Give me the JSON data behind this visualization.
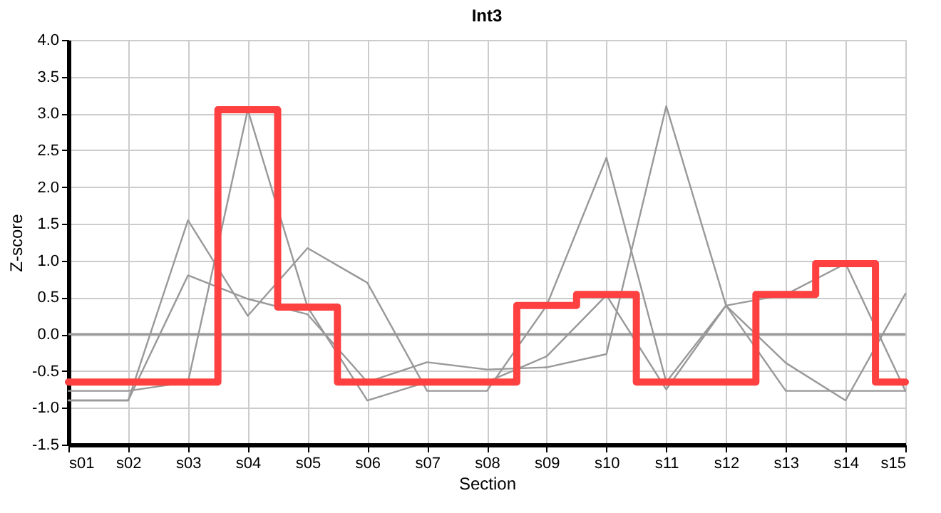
{
  "chart_data": {
    "type": "line",
    "title": "Int3",
    "xlabel": "Section",
    "ylabel": "Z-score",
    "categories": [
      "s01",
      "s02",
      "s03",
      "s04",
      "s05",
      "s06",
      "s07",
      "s08",
      "s09",
      "s10",
      "s11",
      "s12",
      "s13",
      "s14",
      "s15"
    ],
    "series": [
      {
        "color": "#999999",
        "values": [
          -0.77,
          -0.77,
          -0.65,
          3.05,
          0.37,
          -0.9,
          -0.65,
          -0.65,
          -0.3,
          0.53,
          -0.75,
          0.39,
          0.54,
          0.96,
          -0.77
        ]
      },
      {
        "color": "#999999",
        "values": [
          -0.9,
          -0.9,
          1.55,
          0.25,
          1.17,
          0.7,
          -0.77,
          -0.77,
          0.39,
          2.4,
          -0.65,
          0.39,
          -0.39,
          -0.9,
          0.55
        ]
      },
      {
        "color": "#999999",
        "values": [
          -0.9,
          -0.9,
          0.8,
          0.48,
          0.27,
          -0.65,
          -0.38,
          -0.48,
          -0.45,
          -0.27,
          3.1,
          0.39,
          -0.77,
          -0.77,
          -0.77
        ]
      },
      {
        "type": "step",
        "color": "#ff4040",
        "values": [
          -0.65,
          -0.65,
          -0.65,
          3.05,
          0.37,
          -0.65,
          -0.65,
          -0.65,
          0.39,
          0.54,
          -0.65,
          -0.65,
          0.54,
          0.96,
          -0.65
        ]
      }
    ],
    "ylim": [
      -1.5,
      4.0
    ],
    "yticks": [
      {
        "value": -1.5,
        "label": "-1.5"
      },
      {
        "value": -1,
        "label": "-1.0"
      },
      {
        "value": -0.5,
        "label": "-0.5"
      },
      {
        "value": 0,
        "label": "0.0"
      },
      {
        "value": 0.5,
        "label": "0.5"
      },
      {
        "value": 1,
        "label": "1.0"
      },
      {
        "value": 1.5,
        "label": "1.5"
      },
      {
        "value": 2,
        "label": "2.0"
      },
      {
        "value": 2.5,
        "label": "2.5"
      },
      {
        "value": 3,
        "label": "3.0"
      },
      {
        "value": 3.5,
        "label": "3.5"
      },
      {
        "value": 4,
        "label": "4.0"
      }
    ],
    "ref_lines": [
      {
        "axis": "y",
        "value": 0,
        "color": "#999999"
      }
    ],
    "grid": true,
    "legend": false,
    "marker": "none",
    "line_style": "solid"
  }
}
